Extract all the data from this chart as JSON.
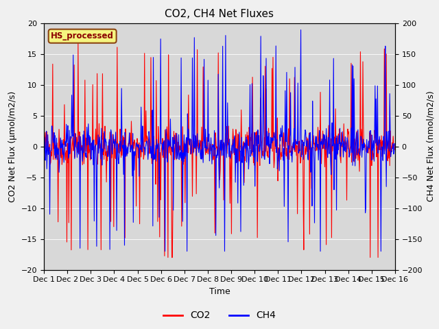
{
  "title": "CO2, CH4 Net Fluxes",
  "xlabel": "Time",
  "ylabel_left": "CO2 Net Flux (μmol/m2/s)",
  "ylabel_right": "CH4 Net Flux (nmol/m2/s)",
  "ylim_left": [
    -20,
    20
  ],
  "ylim_right": [
    -200,
    200
  ],
  "yticks_left": [
    -20,
    -15,
    -10,
    -5,
    0,
    5,
    10,
    15,
    20
  ],
  "yticks_right": [
    -200,
    -150,
    -100,
    -50,
    0,
    50,
    100,
    150,
    200
  ],
  "n_days": 15,
  "n_per_day": 48,
  "color_co2": "#ff0000",
  "color_ch4": "#0000ff",
  "bg_color": "#d8d8d8",
  "fig_bg_color": "#f0f0f0",
  "annotation_text": "HS_processed",
  "annotation_bg": "#f5f580",
  "annotation_edge": "#8b4513",
  "legend_labels": [
    "CO2",
    "CH4"
  ],
  "title_fontsize": 11,
  "axis_label_fontsize": 9,
  "tick_fontsize": 8,
  "legend_fontsize": 10,
  "linewidth": 0.8
}
